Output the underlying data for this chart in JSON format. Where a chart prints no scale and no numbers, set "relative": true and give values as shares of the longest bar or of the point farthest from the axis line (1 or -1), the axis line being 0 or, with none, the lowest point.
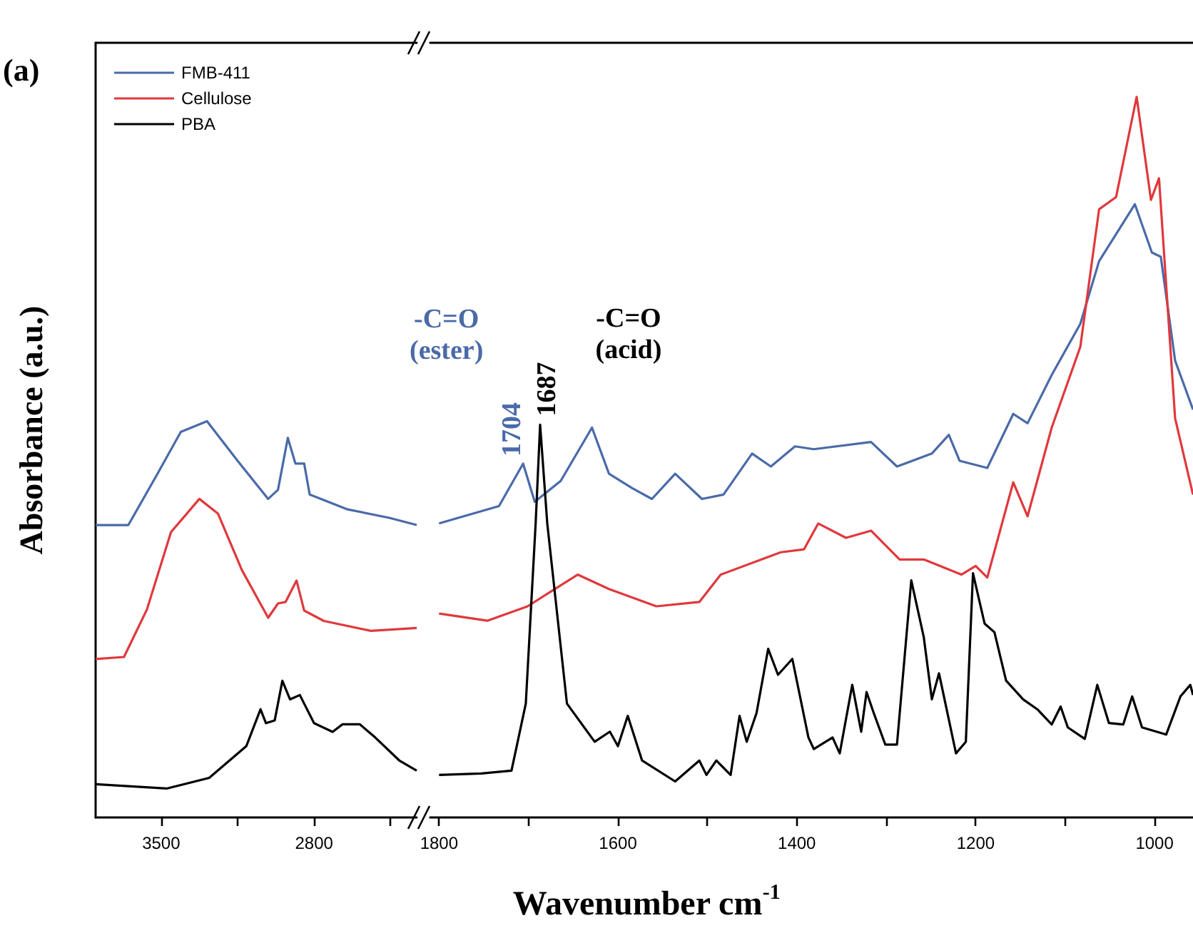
{
  "chart_data": [
    {
      "type": "line",
      "relative": true,
      "title": "(a)",
      "ylabel": "Absorbance (a.u.)",
      "legend": "top left",
      "tick_labels": "x",
      "xlim": [
        3800,
        2330
      ],
      "xticks": [
        3500,
        {
          "value": 3150,
          "label": null
        },
        2800,
        {
          "value": 2450,
          "label": null
        }
      ],
      "series": [
        {
          "name": "FMB-411",
          "color": "#4a6aa8",
          "x": [
            3800,
            3650,
            3520,
            3410,
            3290,
            3150,
            3010,
            2965,
            2920,
            2885,
            2845,
            2820,
            2650,
            2455,
            2330
          ],
          "values": [
            0.738,
            0.738,
            0.864,
            0.973,
            1,
            0.9,
            0.804,
            0.827,
            0.958,
            0.893,
            0.893,
            0.815,
            0.778,
            0.756,
            0.738
          ]
        },
        {
          "name": "Cellulose",
          "color": "#e0383c",
          "x": [
            3800,
            3670,
            3565,
            3455,
            3325,
            3240,
            3130,
            3010,
            2965,
            2930,
            2880,
            2845,
            2755,
            2540,
            2330
          ],
          "values": [
            0.4,
            0.405,
            0.525,
            0.72,
            0.804,
            0.767,
            0.624,
            0.504,
            0.54,
            0.544,
            0.598,
            0.522,
            0.496,
            0.471,
            0.478
          ]
        },
        {
          "name": "PBA",
          "color": "#000000",
          "x": [
            3800,
            3475,
            3280,
            3110,
            3045,
            3020,
            2980,
            2945,
            2910,
            2865,
            2800,
            2715,
            2670,
            2590,
            2520,
            2410,
            2330
          ],
          "values": [
            0.084,
            0.073,
            0.1,
            0.18,
            0.273,
            0.238,
            0.245,
            0.345,
            0.298,
            0.309,
            0.238,
            0.216,
            0.235,
            0.235,
            0.202,
            0.144,
            0.118
          ]
        }
      ]
    },
    {
      "type": "line",
      "relative": true,
      "xlabel": "Wavenumber cm$^{-1}$",
      "tick_labels": "x",
      "xlim": [
        1810,
        957
      ],
      "xticks": [
        1800,
        {
          "value": 1700,
          "label": null
        },
        1600,
        {
          "value": 1500,
          "label": null
        },
        1400,
        {
          "value": 1300,
          "label": null
        },
        1200,
        {
          "value": 1100,
          "label": null
        },
        1000
      ],
      "annotations": [
        "-C=O\n(ester)",
        {
          "text": "1704",
          "x": 1704,
          "y": 0.491
        },
        "-C=O\n(acid)",
        {
          "text": "1687",
          "x": 1687,
          "y": 0.545
        }
      ],
      "series": [
        {
          "color": "#4a6aa8",
          "x": [
            1800,
            1733,
            1706,
            1693,
            1664,
            1629,
            1610,
            1584,
            1562,
            1536,
            1506,
            1482,
            1450,
            1429,
            1402,
            1381,
            1317,
            1288,
            1249,
            1230,
            1218,
            1187,
            1158,
            1142,
            1115,
            1083,
            1062,
            1022,
            1003,
            993,
            977,
            957
          ],
          "values": [
            0.408,
            0.432,
            0.491,
            0.438,
            0.467,
            0.541,
            0.477,
            0.457,
            0.442,
            0.477,
            0.442,
            0.448,
            0.505,
            0.487,
            0.515,
            0.511,
            0.521,
            0.487,
            0.505,
            0.531,
            0.495,
            0.485,
            0.56,
            0.547,
            0.614,
            0.685,
            0.772,
            0.851,
            0.784,
            0.778,
            0.634,
            0.566
          ]
        },
        {
          "color": "#e0383c",
          "x": [
            1800,
            1746,
            1701,
            1645,
            1610,
            1557,
            1509,
            1485,
            1418,
            1392,
            1376,
            1345,
            1317,
            1285,
            1258,
            1216,
            1200,
            1187,
            1158,
            1142,
            1115,
            1083,
            1062,
            1043,
            1020,
            1004,
            995,
            977,
            957
          ],
          "values": [
            0.283,
            0.273,
            0.293,
            0.337,
            0.317,
            0.293,
            0.299,
            0.337,
            0.368,
            0.372,
            0.408,
            0.388,
            0.398,
            0.358,
            0.358,
            0.337,
            0.349,
            0.333,
            0.465,
            0.418,
            0.541,
            0.653,
            0.844,
            0.861,
            1,
            0.857,
            0.887,
            0.554,
            0.448
          ]
        },
        {
          "color": "#000000",
          "x": [
            1800,
            1753,
            1719,
            1703,
            1692,
            1687,
            1679,
            1657,
            1626,
            1609,
            1600,
            1589,
            1573,
            1536,
            1509,
            1501,
            1490,
            1474,
            1464,
            1456,
            1445,
            1432,
            1421,
            1405,
            1387,
            1381,
            1360,
            1352,
            1338,
            1328,
            1322,
            1314,
            1301,
            1288,
            1272,
            1258,
            1249,
            1241,
            1222,
            1211,
            1203,
            1190,
            1179,
            1166,
            1147,
            1131,
            1115,
            1105,
            1097,
            1078,
            1064,
            1051,
            1035,
            1025,
            1014,
            987,
            971,
            960,
            957
          ],
          "values": [
            0.059,
            0.061,
            0.065,
            0.158,
            0.408,
            0.545,
            0.408,
            0.158,
            0.105,
            0.119,
            0.099,
            0.141,
            0.079,
            0.05,
            0.079,
            0.059,
            0.079,
            0.059,
            0.141,
            0.105,
            0.145,
            0.234,
            0.198,
            0.22,
            0.111,
            0.095,
            0.111,
            0.089,
            0.184,
            0.119,
            0.174,
            0.145,
            0.101,
            0.101,
            0.329,
            0.25,
            0.164,
            0.2,
            0.089,
            0.105,
            0.339,
            0.269,
            0.257,
            0.19,
            0.164,
            0.15,
            0.129,
            0.154,
            0.125,
            0.109,
            0.184,
            0.131,
            0.129,
            0.168,
            0.125,
            0.115,
            0.168,
            0.184,
            0.17
          ]
        }
      ]
    }
  ]
}
